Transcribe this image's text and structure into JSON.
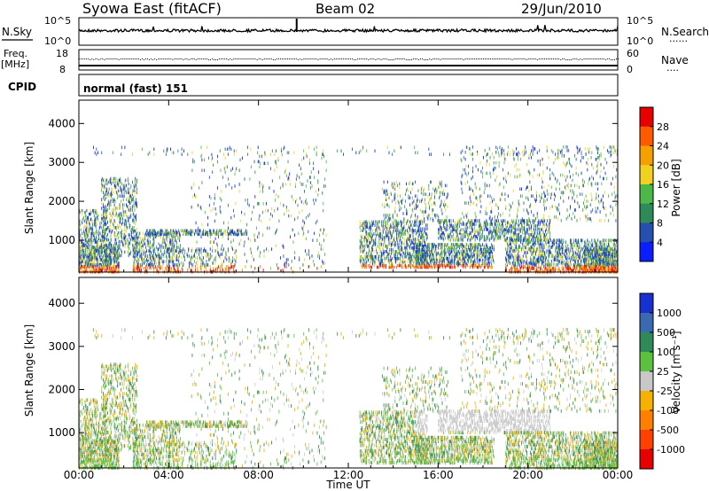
{
  "header": {
    "station": "Syowa East (fitACF)",
    "beam": "Beam 02",
    "date": "29/Jun/2010"
  },
  "noise_panel": {
    "left_label": "N.Sky",
    "right_label": "N.Search",
    "left_top_tick": "10^5",
    "left_bottom_tick": "10^0",
    "right_top_tick": "10^5",
    "right_bottom_tick": "10^0",
    "right_legend_line": "......"
  },
  "freq_panel": {
    "left_label_1": "Freq.",
    "left_label_2": "[MHz]",
    "left_top_tick": "18",
    "left_bottom_tick": "8",
    "right_label": "Nave",
    "right_top_tick": "60",
    "right_bottom_tick": "0",
    "right_legend_line": "...."
  },
  "cpid_panel": {
    "label": "CPID",
    "mode": "normal (fast) 151"
  },
  "chart_data": [
    {
      "type": "heatmap",
      "name": "power",
      "ylabel": "Slant Range [km]",
      "yticks": [
        "1000",
        "2000",
        "3000",
        "4000"
      ],
      "ytick_values": [
        1000,
        2000,
        3000,
        4000
      ],
      "ylim": [
        180,
        4600
      ],
      "xlim": [
        0,
        24
      ],
      "colorbar_label": "Power [dB]",
      "colorbar_ticks": [
        "4",
        "8",
        "12",
        "16",
        "20",
        "24",
        "28"
      ],
      "colorbar_colors": [
        "#0a1eff",
        "#2450b0",
        "#2f8a5a",
        "#4cb84a",
        "#f0d020",
        "#f5a000",
        "#ff5a00",
        "#e60000"
      ]
    },
    {
      "type": "heatmap",
      "name": "velocity",
      "ylabel": "Slant Range [km]",
      "yticks": [
        "1000",
        "2000",
        "3000",
        "4000"
      ],
      "ytick_values": [
        1000,
        2000,
        3000,
        4000
      ],
      "ylim": [
        180,
        4600
      ],
      "xlim": [
        0,
        24
      ],
      "xlabel": "Time UT",
      "xticks": [
        "00:00",
        "04:00",
        "08:00",
        "12:00",
        "16:00",
        "20:00",
        "00:00"
      ],
      "xtick_values": [
        0,
        4,
        8,
        12,
        16,
        20,
        24
      ],
      "colorbar_label": "Velocity [m s⁻¹]",
      "colorbar_ticks": [
        "1000",
        "500",
        "100",
        "25",
        "-25",
        "-100",
        "-500",
        "-1000"
      ],
      "colorbar_colors": [
        "#1830d0",
        "#3a6ab0",
        "#2f8a5a",
        "#5cc040",
        "#c8c8c8",
        "#f5b000",
        "#ff8000",
        "#ff4000",
        "#e60000"
      ]
    }
  ]
}
